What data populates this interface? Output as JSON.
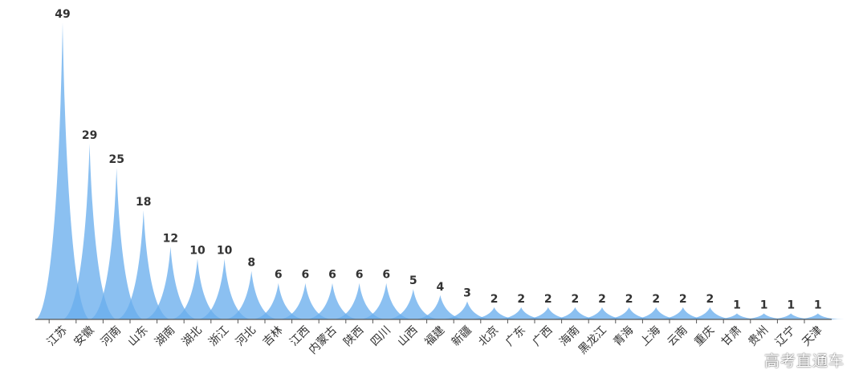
{
  "chart_data": {
    "type": "bar",
    "categories": [
      "江苏",
      "安徽",
      "河南",
      "山东",
      "湖南",
      "湖北",
      "浙江",
      "河北",
      "吉林",
      "江西",
      "内蒙古",
      "陕西",
      "四川",
      "山西",
      "福建",
      "新疆",
      "北京",
      "广东",
      "广西",
      "海南",
      "黑龙江",
      "青海",
      "上海",
      "云南",
      "重庆",
      "甘肃",
      "贵州",
      "辽宁",
      "天津"
    ],
    "values": [
      49,
      29,
      25,
      18,
      12,
      10,
      10,
      8,
      6,
      6,
      6,
      6,
      6,
      5,
      4,
      3,
      2,
      2,
      2,
      2,
      2,
      2,
      2,
      2,
      2,
      1,
      1,
      1,
      1
    ],
    "title": "",
    "xlabel": "",
    "ylabel": "",
    "ylim": [
      0,
      49
    ],
    "grid": false,
    "legend": "none",
    "data_labels": true,
    "colors": {
      "fill": "#6aaeed",
      "axis": "#555555",
      "label": "#333333"
    }
  },
  "watermark": "高考直通车"
}
